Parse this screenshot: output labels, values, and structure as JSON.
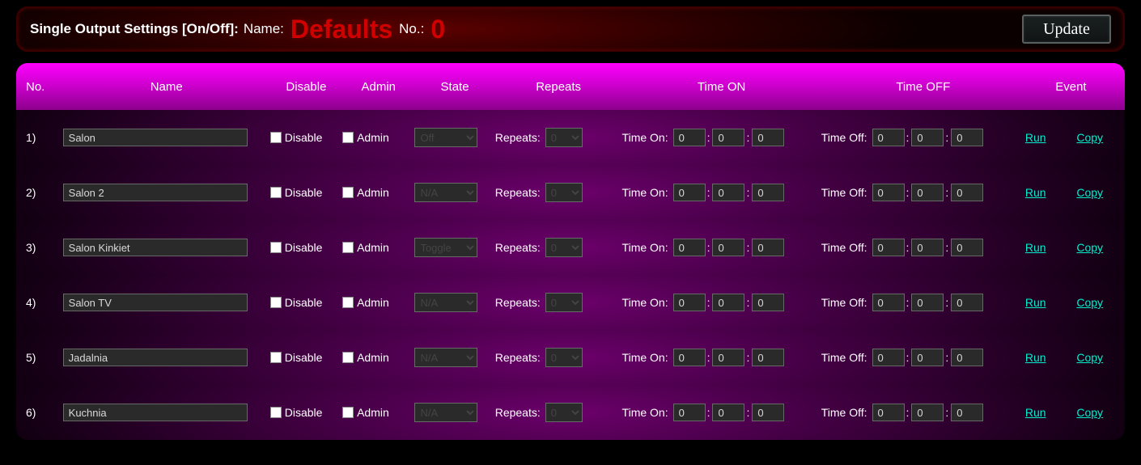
{
  "header": {
    "title_text": "Single Output Settings [On/Off]:",
    "name_label": "Name:",
    "name_value": "Defaults",
    "no_label": "No.:",
    "no_value": "0",
    "update_label": "Update"
  },
  "columns": {
    "no": "No.",
    "name": "Name",
    "disable": "Disable",
    "admin": "Admin",
    "state": "State",
    "repeats": "Repeats",
    "time_on": "Time ON",
    "time_off": "Time OFF",
    "event": "Event"
  },
  "field_labels": {
    "disable": "Disable",
    "admin": "Admin",
    "repeats": "Repeats:",
    "time_on": "Time On:",
    "time_off": "Time Off:"
  },
  "event_links": {
    "run": "Run",
    "copy": "Copy"
  },
  "colors": {
    "accent_red": "#d00000",
    "accent_magenta": "#ff00ff",
    "link": "#00eecc",
    "panel_bg": "#000000",
    "input_bg": "#2a2a2a",
    "input_border": "#686868"
  },
  "rows": [
    {
      "no": "1)",
      "name": "Salon",
      "disable": false,
      "admin": false,
      "state": "Off",
      "repeats": "0",
      "time_on": [
        "0",
        "0",
        "0"
      ],
      "time_off": [
        "0",
        "0",
        "0"
      ]
    },
    {
      "no": "2)",
      "name": "Salon 2",
      "disable": false,
      "admin": false,
      "state": "N/A",
      "repeats": "0",
      "time_on": [
        "0",
        "0",
        "0"
      ],
      "time_off": [
        "0",
        "0",
        "0"
      ]
    },
    {
      "no": "3)",
      "name": "Salon Kinkiet",
      "disable": false,
      "admin": false,
      "state": "Toggle",
      "repeats": "0",
      "time_on": [
        "0",
        "0",
        "0"
      ],
      "time_off": [
        "0",
        "0",
        "0"
      ]
    },
    {
      "no": "4)",
      "name": "Salon TV",
      "disable": false,
      "admin": false,
      "state": "N/A",
      "repeats": "0",
      "time_on": [
        "0",
        "0",
        "0"
      ],
      "time_off": [
        "0",
        "0",
        "0"
      ]
    },
    {
      "no": "5)",
      "name": "Jadalnia",
      "disable": false,
      "admin": false,
      "state": "N/A",
      "repeats": "0",
      "time_on": [
        "0",
        "0",
        "0"
      ],
      "time_off": [
        "0",
        "0",
        "0"
      ]
    },
    {
      "no": "6)",
      "name": "Kuchnia",
      "disable": false,
      "admin": false,
      "state": "N/A",
      "repeats": "0",
      "time_on": [
        "0",
        "0",
        "0"
      ],
      "time_off": [
        "0",
        "0",
        "0"
      ]
    }
  ]
}
